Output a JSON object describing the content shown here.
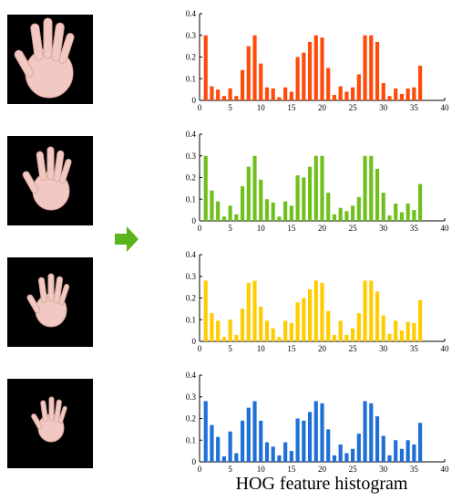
{
  "caption": "HOG feature histogram",
  "hand_images": [
    "hand-large",
    "hand-medium",
    "hand-small",
    "hand-smallest"
  ],
  "arrow": {
    "icon": "right-arrow-icon",
    "color": "#5cb31a"
  },
  "chart_data": [
    {
      "type": "bar",
      "color": "#ff4a0a",
      "xlim": [
        0,
        40
      ],
      "ylim": [
        0,
        0.4
      ],
      "xticks": [
        "0",
        "5",
        "10",
        "15",
        "20",
        "25",
        "30",
        "35",
        "40"
      ],
      "yticks": [
        "0",
        "0.1",
        "0.2",
        "0.3",
        "0.4"
      ],
      "x": [
        1,
        2,
        3,
        4,
        5,
        6,
        7,
        8,
        9,
        10,
        11,
        12,
        13,
        14,
        15,
        16,
        17,
        18,
        19,
        20,
        21,
        22,
        23,
        24,
        25,
        26,
        27,
        28,
        29,
        30,
        31,
        32,
        33,
        34,
        35,
        36
      ],
      "values": [
        0.3,
        0.065,
        0.05,
        0.02,
        0.055,
        0.02,
        0.14,
        0.25,
        0.3,
        0.17,
        0.06,
        0.055,
        0.015,
        0.06,
        0.04,
        0.2,
        0.22,
        0.27,
        0.3,
        0.29,
        0.15,
        0.025,
        0.065,
        0.04,
        0.06,
        0.12,
        0.3,
        0.3,
        0.27,
        0.08,
        0.02,
        0.055,
        0.03,
        0.055,
        0.06,
        0.16
      ]
    },
    {
      "type": "bar",
      "color": "#6fc01c",
      "xlim": [
        0,
        40
      ],
      "ylim": [
        0,
        0.4
      ],
      "xticks": [
        "0",
        "5",
        "10",
        "15",
        "20",
        "25",
        "30",
        "35",
        "40"
      ],
      "yticks": [
        "0",
        "0.1",
        "0.2",
        "0.3",
        "0.4"
      ],
      "x": [
        1,
        2,
        3,
        4,
        5,
        6,
        7,
        8,
        9,
        10,
        11,
        12,
        13,
        14,
        15,
        16,
        17,
        18,
        19,
        20,
        21,
        22,
        23,
        24,
        25,
        26,
        27,
        28,
        29,
        30,
        31,
        32,
        33,
        34,
        35,
        36
      ],
      "values": [
        0.3,
        0.14,
        0.09,
        0.02,
        0.07,
        0.03,
        0.16,
        0.25,
        0.3,
        0.19,
        0.1,
        0.085,
        0.02,
        0.09,
        0.07,
        0.21,
        0.2,
        0.25,
        0.3,
        0.3,
        0.13,
        0.03,
        0.06,
        0.045,
        0.07,
        0.11,
        0.3,
        0.3,
        0.24,
        0.13,
        0.025,
        0.08,
        0.04,
        0.08,
        0.05,
        0.17
      ]
    },
    {
      "type": "bar",
      "color": "#ffcc00",
      "xlim": [
        0,
        40
      ],
      "ylim": [
        0,
        0.4
      ],
      "xticks": [
        "0",
        "5",
        "10",
        "15",
        "20",
        "25",
        "30",
        "35",
        "40"
      ],
      "yticks": [
        "0",
        "0.1",
        "0.2",
        "0.3",
        "0.4"
      ],
      "x": [
        1,
        2,
        3,
        4,
        5,
        6,
        7,
        8,
        9,
        10,
        11,
        12,
        13,
        14,
        15,
        16,
        17,
        18,
        19,
        20,
        21,
        22,
        23,
        24,
        25,
        26,
        27,
        28,
        29,
        30,
        31,
        32,
        33,
        34,
        35,
        36
      ],
      "values": [
        0.28,
        0.13,
        0.095,
        0.02,
        0.1,
        0.03,
        0.15,
        0.27,
        0.28,
        0.16,
        0.095,
        0.06,
        0.02,
        0.095,
        0.085,
        0.18,
        0.2,
        0.24,
        0.28,
        0.27,
        0.14,
        0.03,
        0.095,
        0.03,
        0.06,
        0.13,
        0.28,
        0.28,
        0.23,
        0.12,
        0.035,
        0.095,
        0.05,
        0.09,
        0.085,
        0.19
      ]
    },
    {
      "type": "bar",
      "color": "#1f6fd6",
      "xlim": [
        0,
        40
      ],
      "ylim": [
        0,
        0.4
      ],
      "xticks": [
        "0",
        "5",
        "10",
        "15",
        "20",
        "25",
        "30",
        "35",
        "40"
      ],
      "yticks": [
        "0",
        "0.1",
        "0.2",
        "0.3",
        "0.4"
      ],
      "x": [
        1,
        2,
        3,
        4,
        5,
        6,
        7,
        8,
        9,
        10,
        11,
        12,
        13,
        14,
        15,
        16,
        17,
        18,
        19,
        20,
        21,
        22,
        23,
        24,
        25,
        26,
        27,
        28,
        29,
        30,
        31,
        32,
        33,
        34,
        35,
        36
      ],
      "values": [
        0.28,
        0.17,
        0.115,
        0.025,
        0.14,
        0.04,
        0.19,
        0.25,
        0.28,
        0.19,
        0.09,
        0.07,
        0.03,
        0.09,
        0.05,
        0.2,
        0.19,
        0.23,
        0.28,
        0.27,
        0.15,
        0.03,
        0.08,
        0.04,
        0.06,
        0.13,
        0.28,
        0.27,
        0.21,
        0.12,
        0.03,
        0.1,
        0.06,
        0.1,
        0.08,
        0.18
      ]
    }
  ]
}
